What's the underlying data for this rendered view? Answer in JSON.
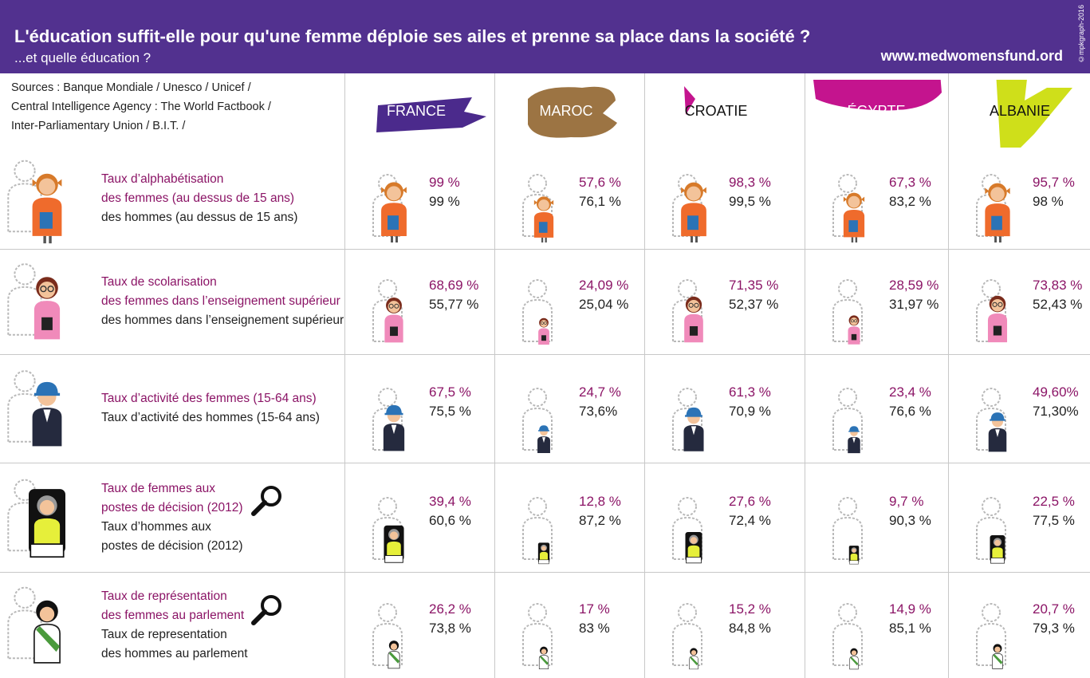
{
  "header": {
    "title": "L'éducation suffit-elle pour qu'une femme déploie ses ailes et prenne sa place dans la société ?",
    "subtitle": "...et quelle éducation ?",
    "website": "www.medwomensfund.ord",
    "credit": "©mpkgraph-2016"
  },
  "sources": "Sources :  Banque Mondiale / Unesco / Unicef /\nCentral Intelligence Agency : The World Factbook /\nInter-Parliamentary Union / B.I.T. /",
  "colors": {
    "header_bg": "#52318f",
    "women_text": "#8b1466",
    "men_text": "#222222"
  },
  "countries": [
    {
      "name": "FRANCE",
      "color": "#4b2a8c",
      "label_color": "#ffffff"
    },
    {
      "name": "MAROC",
      "color": "#9c7443",
      "label_color": "#ffffff"
    },
    {
      "name": "CROATIE",
      "color": "#c4148e",
      "label_color": "#111111"
    },
    {
      "name": "ÉGYPTE",
      "color": "#c4148e",
      "label_color": "#ffffff"
    },
    {
      "name": "ALBANIE",
      "color": "#cfdf1a",
      "label_color": "#111111"
    }
  ],
  "rows": [
    {
      "women_label": [
        "Taux d’alphabétisation",
        "des femmes (au dessus de 15 ans)"
      ],
      "men_label": [
        "des hommes (au dessus de 15 ans)"
      ],
      "figure": "schoolgirl-icon",
      "magnifier": false
    },
    {
      "women_label": [
        "Taux de scolarisation",
        "des femmes dans l’enseignement supérieur"
      ],
      "men_label": [
        "des hommes dans l’enseignement supérieur"
      ],
      "figure": "student-icon",
      "magnifier": false
    },
    {
      "women_label": [
        "Taux d’activité des femmes (15-64 ans)"
      ],
      "men_label": [
        "Taux d’activité des hommes (15-64 ans)"
      ],
      "figure": "worker-icon",
      "magnifier": false
    },
    {
      "women_label": [
        "Taux de femmes aux",
        "postes de décision (2012)"
      ],
      "men_label": [
        "Taux d’hommes aux",
        "postes de décision (2012)"
      ],
      "figure": "executive-icon",
      "magnifier": true
    },
    {
      "women_label": [
        "Taux de représentation",
        "des femmes au parlement"
      ],
      "men_label": [
        "Taux de representation",
        "des hommes au parlement"
      ],
      "figure": "parliamentarian-icon",
      "magnifier": true
    }
  ],
  "chart_data": {
    "type": "table",
    "columns": [
      "FRANCE",
      "MAROC",
      "CROATIE",
      "ÉGYPTE",
      "ALBANIE"
    ],
    "rows": [
      {
        "women": [
          "99 %",
          "57,6 %",
          "98,3 %",
          "67,3 %",
          "95,7 %"
        ],
        "men": [
          "99 %",
          "76,1 %",
          "99,5 %",
          "83,2 %",
          "98 %"
        ],
        "women_values": [
          99,
          57.6,
          98.3,
          67.3,
          95.7
        ]
      },
      {
        "women": [
          "68,69 %",
          "24,09 %",
          "71,35 %",
          "28,59 %",
          "73,83 %"
        ],
        "men": [
          "55,77 %",
          "25,04 %",
          "52,37 %",
          "31,97 %",
          "52,43 %"
        ],
        "women_values": [
          68.69,
          24.09,
          71.35,
          28.59,
          73.83
        ]
      },
      {
        "women": [
          "67,5 %",
          "24,7 %",
          "61,3 %",
          "23,4 %",
          "49,60%"
        ],
        "men": [
          "75,5 %",
          "73,6%",
          "70,9 %",
          "76,6 %",
          "71,30%"
        ],
        "women_values": [
          67.5,
          24.7,
          61.3,
          23.4,
          49.6
        ]
      },
      {
        "women": [
          "39,4 %",
          "12,8 %",
          "27,6 %",
          "9,7 %",
          "22,5 %"
        ],
        "men": [
          "60,6 %",
          "87,2 %",
          "72,4 %",
          "90,3 %",
          "77,5 %"
        ],
        "women_values": [
          39.4,
          12.8,
          27.6,
          9.7,
          22.5
        ]
      },
      {
        "women": [
          "26,2 %",
          "17 %",
          "15,2 %",
          "14,9 %",
          "20,7 %"
        ],
        "men": [
          "73,8 %",
          "83 %",
          "84,8 %",
          "85,1 %",
          "79,3 %"
        ],
        "women_values": [
          26.2,
          17,
          15.2,
          14.9,
          20.7
        ]
      }
    ]
  }
}
